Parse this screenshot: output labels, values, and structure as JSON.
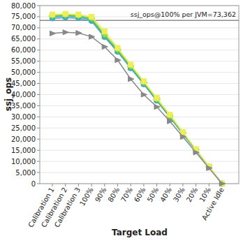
{
  "chart_data": {
    "type": "line",
    "x_label": "Target Load",
    "y_label": "ssj_ops",
    "categories": [
      "Calibration 1",
      "Calibration 2",
      "Calibration 3",
      "100%",
      "90%",
      "80%",
      "70%",
      "60%",
      "50%",
      "40%",
      "30%",
      "20%",
      "10%",
      "Active Idle"
    ],
    "ylim": [
      0,
      80000
    ],
    "yticks": [
      0,
      {
        "value": 5000,
        "label": "5,000"
      },
      {
        "value": 10000,
        "label": "10,000"
      },
      {
        "value": 15000,
        "label": "15,000"
      },
      {
        "value": 20000,
        "label": "20,000"
      },
      {
        "value": 25000,
        "label": "25,000"
      },
      {
        "value": 30000,
        "label": "30,000"
      },
      {
        "value": 35000,
        "label": "35,000"
      },
      {
        "value": 40000,
        "label": "40,000"
      },
      {
        "value": 45000,
        "label": "45,000"
      },
      {
        "value": 50000,
        "label": "50,000"
      },
      {
        "value": 55000,
        "label": "55,000"
      },
      {
        "value": 60000,
        "label": "60,000"
      },
      {
        "value": 65000,
        "label": "65,000"
      },
      {
        "value": 70000,
        "label": "70,000"
      },
      {
        "value": 75000,
        "label": "75,000"
      },
      {
        "value": 80000,
        "label": "80,000"
      }
    ],
    "grid": true,
    "reference_line": {
      "value": 73362,
      "label": "ssj_ops@100% per JVM=73,362"
    },
    "series": [
      {
        "color": "#6699cc",
        "marker": "circle",
        "values": [
          74200,
          74600,
          74300,
          73000,
          65800,
          59200,
          51800,
          44600,
          37200,
          29800,
          22300,
          14900,
          7400,
          0
        ]
      },
      {
        "color": "#33bbbb",
        "marker": "square",
        "values": [
          74800,
          75200,
          74900,
          73600,
          66300,
          59700,
          52200,
          45000,
          37600,
          30100,
          22600,
          15100,
          7500,
          0
        ]
      },
      {
        "color": "#55bb55",
        "marker": "diamond",
        "values": [
          75200,
          75600,
          75300,
          74000,
          66700,
          60000,
          52600,
          45300,
          37800,
          30300,
          22700,
          15200,
          7600,
          0
        ]
      },
      {
        "color": "#99dd55",
        "marker": "diamond",
        "values": [
          75600,
          75900,
          75600,
          74400,
          67200,
          60400,
          52900,
          45600,
          38100,
          30600,
          22900,
          15300,
          7600,
          0
        ]
      },
      {
        "color": "#eeee55",
        "marker": "square",
        "values": [
          76000,
          76300,
          76000,
          75000,
          68500,
          61000,
          53500,
          46000,
          38500,
          31000,
          23200,
          15500,
          7700,
          0
        ]
      },
      {
        "color": "#888888",
        "marker": "triangle",
        "values": [
          67500,
          68000,
          67700,
          66000,
          61500,
          55500,
          47000,
          40000,
          34500,
          28000,
          21000,
          14000,
          7000,
          0
        ]
      }
    ]
  }
}
